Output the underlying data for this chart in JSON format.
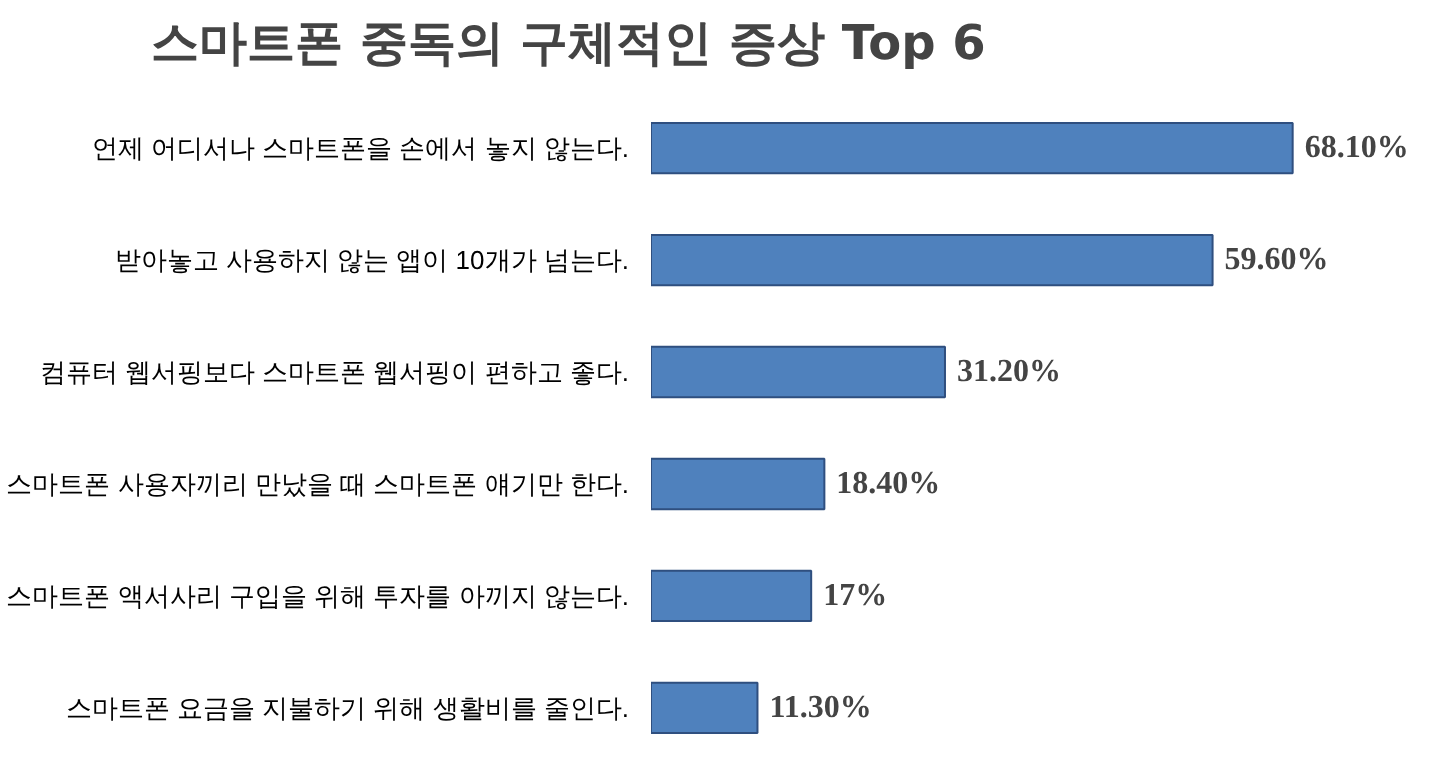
{
  "chart_data": {
    "type": "bar",
    "orientation": "horizontal",
    "title": "스마트폰 중독의 구체적인 증상 Top 6",
    "categories": [
      "언제 어디서나 스마트폰을 손에서 놓지 않는다.",
      "받아놓고 사용하지 않는 앱이 10개가 넘는다.",
      "컴퓨터 웹서핑보다 스마트폰 웹서핑이 편하고 좋다.",
      "스마트폰 사용자끼리 만났을 때 스마트폰 얘기만 한다.",
      "스마트폰 액서사리 구입을 위해 투자를 아끼지 않는다.",
      "스마트폰 요금을 지불하기 위해 생활비를 줄인다."
    ],
    "values": [
      68.1,
      59.6,
      31.2,
      18.4,
      17,
      11.3
    ],
    "value_labels": [
      "68.10%",
      "59.60%",
      "31.20%",
      "18.40%",
      "17%",
      "11.30%"
    ],
    "color": "#4f81bd",
    "grid": false
  }
}
